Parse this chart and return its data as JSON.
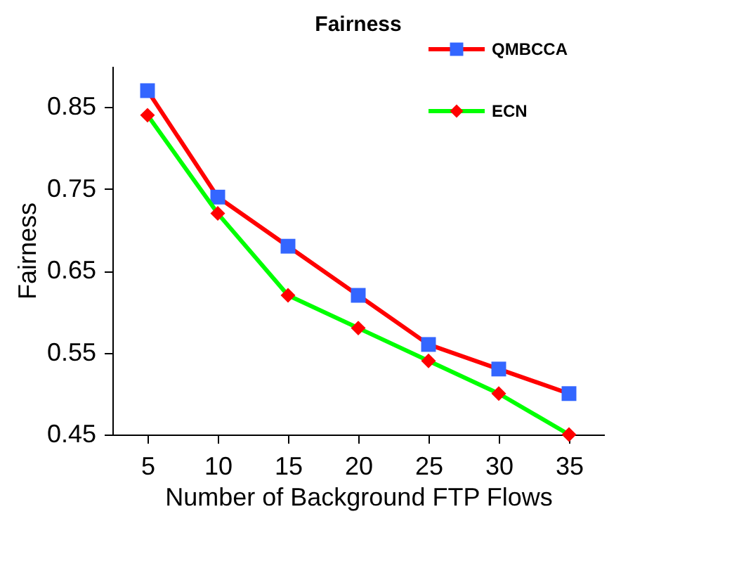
{
  "chart_data": {
    "type": "line",
    "title": "Fairness",
    "xlabel": "Number of Background FTP Flows",
    "ylabel": "Fairness",
    "categories": [
      "5",
      "10",
      "15",
      "20",
      "25",
      "30",
      "35"
    ],
    "series": [
      {
        "name": "QMBCCA",
        "color": "#ff0000",
        "marker": "square",
        "colors": [
          "#3366ff",
          "#3366ff",
          "#3366ff",
          "#3366ff",
          "#3366ff",
          "#3366ff",
          "#3366ff"
        ],
        "values": [
          0.87,
          0.74,
          0.68,
          0.62,
          0.56,
          0.53,
          0.5
        ]
      },
      {
        "name": "ECN",
        "color": "#00ff00",
        "marker": "diamond",
        "colors": [
          "#ff0000",
          "#ff0000",
          "#ff0000",
          "#ff0000",
          "#ff0000",
          "#ff0000",
          "#ff0000"
        ],
        "values": [
          0.84,
          0.72,
          0.62,
          0.58,
          0.54,
          0.5,
          0.45
        ]
      }
    ],
    "ylim": [
      0.45,
      0.9
    ],
    "yticks": [
      0.45,
      0.55,
      0.65,
      0.75,
      0.85
    ],
    "legend": "top right"
  }
}
